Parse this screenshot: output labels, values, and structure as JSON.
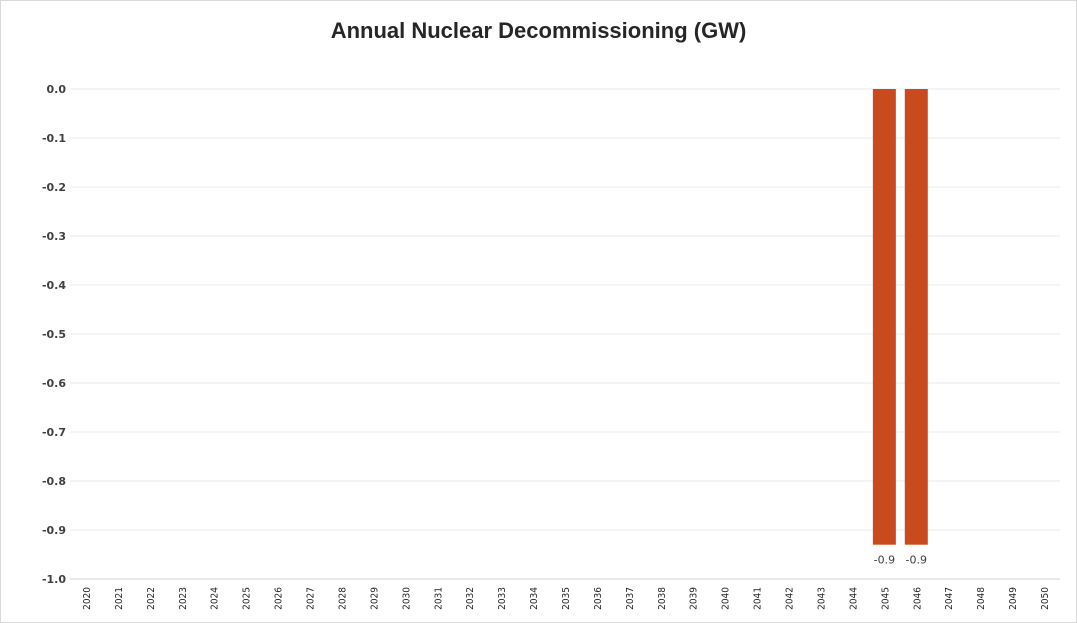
{
  "chart_data": {
    "type": "bar",
    "title": "Annual Nuclear Decommissioning (GW)",
    "xlabel": "",
    "ylabel": "",
    "categories": [
      "2020",
      "2021",
      "2022",
      "2023",
      "2024",
      "2025",
      "2026",
      "2027",
      "2028",
      "2029",
      "2030",
      "2031",
      "2032",
      "2033",
      "2034",
      "2035",
      "2036",
      "2037",
      "2038",
      "2039",
      "2040",
      "2041",
      "2042",
      "2043",
      "2044",
      "2045",
      "2046",
      "2047",
      "2048",
      "2049",
      "2050"
    ],
    "values": [
      0,
      0,
      0,
      0,
      0,
      0,
      0,
      0,
      0,
      0,
      0,
      0,
      0,
      0,
      0,
      0,
      0,
      0,
      0,
      0,
      0,
      0,
      0,
      0,
      0,
      -0.93,
      -0.93,
      0,
      0,
      0,
      0
    ],
    "data_labels": {
      "2045": "-0.9",
      "2046": "-0.9"
    },
    "yticks": [
      "0.0",
      "-0.1",
      "-0.2",
      "-0.3",
      "-0.4",
      "-0.5",
      "-0.6",
      "-0.7",
      "-0.8",
      "-0.9",
      "-1.0"
    ],
    "ylim": [
      -1.0,
      0.0
    ],
    "grid": true,
    "bar_color": "#c94a1c",
    "legend": "none"
  }
}
